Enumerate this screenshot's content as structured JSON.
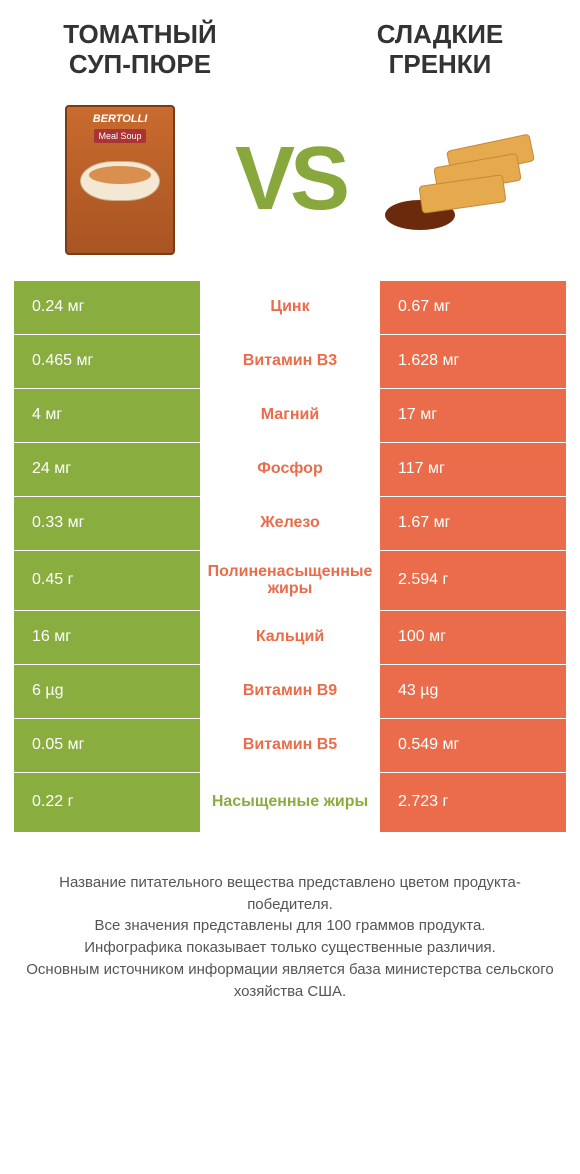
{
  "header": {
    "left_title": "ТОМАТНЫЙ СУП-ПЮРЕ",
    "right_title": "СЛАДКИЕ ГРЕНКИ",
    "vs_label": "VS"
  },
  "colors": {
    "left_bar": "#8aad3f",
    "right_bar": "#ea6c4b",
    "nutrient_left_win": "#8aad3f",
    "nutrient_right_win": "#ea6c4b",
    "row_border": "#ffffff",
    "text_light": "#ffffff"
  },
  "rows": [
    {
      "left": "0.24 мг",
      "mid": "Цинк",
      "right": "0.67 мг",
      "winner": "right",
      "tall": false
    },
    {
      "left": "0.465 мг",
      "mid": "Витамин B3",
      "right": "1.628 мг",
      "winner": "right",
      "tall": false
    },
    {
      "left": "4 мг",
      "mid": "Магний",
      "right": "17 мг",
      "winner": "right",
      "tall": false
    },
    {
      "left": "24 мг",
      "mid": "Фосфор",
      "right": "117 мг",
      "winner": "right",
      "tall": false
    },
    {
      "left": "0.33 мг",
      "mid": "Железо",
      "right": "1.67 мг",
      "winner": "right",
      "tall": false
    },
    {
      "left": "0.45 г",
      "mid": "Полиненасыщенные жиры",
      "right": "2.594 г",
      "winner": "right",
      "tall": true
    },
    {
      "left": "16 мг",
      "mid": "Кальций",
      "right": "100 мг",
      "winner": "right",
      "tall": false
    },
    {
      "left": "6 µg",
      "mid": "Витамин B9",
      "right": "43 µg",
      "winner": "right",
      "tall": false
    },
    {
      "left": "0.05 мг",
      "mid": "Витамин B5",
      "right": "0.549 мг",
      "winner": "right",
      "tall": false
    },
    {
      "left": "0.22 г",
      "mid": "Насыщенные жиры",
      "right": "2.723 г",
      "winner": "left",
      "tall": true
    }
  ],
  "footer": {
    "line1": "Название питательного вещества представлено цветом продукта-победителя.",
    "line2": "Все значения представлены для 100 граммов продукта.",
    "line3": "Инфографика показывает только существенные различия.",
    "line4": "Основным источником информации является база министерства сельского хозяйства США."
  }
}
